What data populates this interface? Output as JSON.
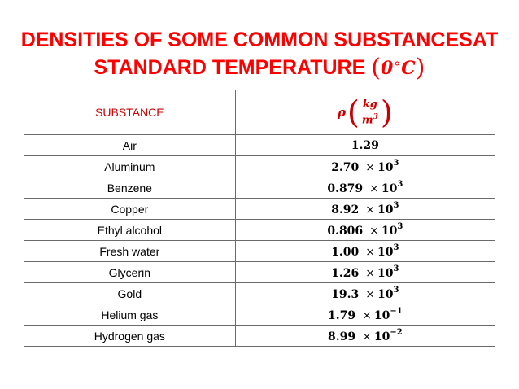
{
  "title": {
    "line1": "DENSITIES OF SOME COMMON SUBSTANCESAT",
    "line2_text": "STANDARD TEMPERATURE",
    "paren_open": "(",
    "temp_value": "0",
    "degree": "∘",
    "temp_unit": "C",
    "paren_close": ")"
  },
  "table": {
    "header": {
      "substance": "SUBSTANCE",
      "rho_symbol": "ρ",
      "paren_open": "(",
      "unit_numerator": "kg",
      "unit_denominator": "m",
      "unit_denominator_power": "3",
      "paren_close": ")"
    },
    "times_symbol": "×",
    "rows": [
      {
        "substance": "Air",
        "mantissa": "1.29",
        "base": "",
        "exponent": ""
      },
      {
        "substance": "Aluminum",
        "mantissa": "2.70",
        "base": "10",
        "exponent": "3"
      },
      {
        "substance": "Benzene",
        "mantissa": "0.879",
        "base": "10",
        "exponent": "3"
      },
      {
        "substance": "Copper",
        "mantissa": "8.92",
        "base": "10",
        "exponent": "3"
      },
      {
        "substance": "Ethyl alcohol",
        "mantissa": "0.806",
        "base": "10",
        "exponent": "3"
      },
      {
        "substance": "Fresh water",
        "mantissa": "1.00",
        "base": "10",
        "exponent": "3"
      },
      {
        "substance": "Glycerin",
        "mantissa": "1.26",
        "base": "10",
        "exponent": "3"
      },
      {
        "substance": "Gold",
        "mantissa": "19.3",
        "base": "10",
        "exponent": "3"
      },
      {
        "substance": "Helium gas",
        "mantissa": "1.79",
        "base": "10",
        "exponent": "−1"
      },
      {
        "substance": "Hydrogen gas",
        "mantissa": "8.99",
        "base": "10",
        "exponent": "−2"
      }
    ]
  },
  "colors": {
    "title": "#ff0000",
    "header_text": "#cc0000",
    "border": "#6b6b6b"
  }
}
